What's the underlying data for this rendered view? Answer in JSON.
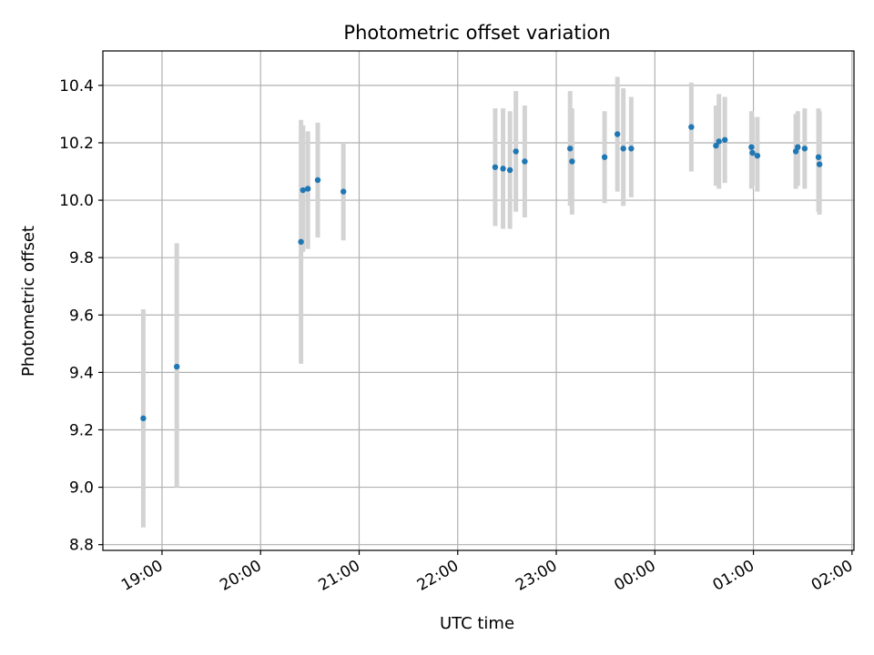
{
  "chart_data": {
    "type": "scatter",
    "title": "Photometric offset variation",
    "xlabel": "UTC time",
    "ylabel": "Photometric offset",
    "grid": true,
    "xlim_hours": [
      18.4,
      26.02
    ],
    "ylim": [
      8.78,
      10.52
    ],
    "xticks": [
      {
        "h": 19,
        "label": "19:00"
      },
      {
        "h": 20,
        "label": "20:00"
      },
      {
        "h": 21,
        "label": "21:00"
      },
      {
        "h": 22,
        "label": "22:00"
      },
      {
        "h": 23,
        "label": "23:00"
      },
      {
        "h": 24,
        "label": "00:00"
      },
      {
        "h": 25,
        "label": "01:00"
      },
      {
        "h": 26,
        "label": "02:00"
      }
    ],
    "yticks": [
      {
        "v": 8.8,
        "label": "8.8"
      },
      {
        "v": 9.0,
        "label": "9.0"
      },
      {
        "v": 9.2,
        "label": "9.2"
      },
      {
        "v": 9.4,
        "label": "9.4"
      },
      {
        "v": 9.6,
        "label": "9.6"
      },
      {
        "v": 9.8,
        "label": "9.8"
      },
      {
        "v": 10.0,
        "label": "10.0"
      },
      {
        "v": 10.2,
        "label": "10.2"
      },
      {
        "v": 10.4,
        "label": "10.4"
      }
    ],
    "colors": {
      "marker": "#1f77b4",
      "errorbar": "#d3d3d3",
      "grid": "#b0b0b0",
      "axis": "#000000"
    },
    "points": [
      {
        "t": 18.81,
        "y": 9.24,
        "lo": 8.86,
        "hi": 9.62
      },
      {
        "t": 19.15,
        "y": 9.42,
        "lo": 9.0,
        "hi": 9.85
      },
      {
        "t": 20.41,
        "y": 9.855,
        "lo": 9.43,
        "hi": 10.28
      },
      {
        "t": 20.43,
        "y": 10.035,
        "lo": 9.82,
        "hi": 10.26
      },
      {
        "t": 20.48,
        "y": 10.04,
        "lo": 9.83,
        "hi": 10.24
      },
      {
        "t": 20.58,
        "y": 10.07,
        "lo": 9.87,
        "hi": 10.27
      },
      {
        "t": 20.84,
        "y": 10.03,
        "lo": 9.86,
        "hi": 10.2
      },
      {
        "t": 22.38,
        "y": 10.115,
        "lo": 9.91,
        "hi": 10.32
      },
      {
        "t": 22.46,
        "y": 10.11,
        "lo": 9.9,
        "hi": 10.32
      },
      {
        "t": 22.53,
        "y": 10.105,
        "lo": 9.9,
        "hi": 10.31
      },
      {
        "t": 22.59,
        "y": 10.17,
        "lo": 9.96,
        "hi": 10.38
      },
      {
        "t": 22.68,
        "y": 10.135,
        "lo": 9.94,
        "hi": 10.33
      },
      {
        "t": 23.14,
        "y": 10.18,
        "lo": 9.98,
        "hi": 10.38
      },
      {
        "t": 23.16,
        "y": 10.135,
        "lo": 9.95,
        "hi": 10.32
      },
      {
        "t": 23.49,
        "y": 10.15,
        "lo": 9.99,
        "hi": 10.31
      },
      {
        "t": 23.62,
        "y": 10.23,
        "lo": 10.03,
        "hi": 10.43
      },
      {
        "t": 23.68,
        "y": 10.18,
        "lo": 9.98,
        "hi": 10.39
      },
      {
        "t": 23.76,
        "y": 10.18,
        "lo": 10.01,
        "hi": 10.36
      },
      {
        "t": 24.37,
        "y": 10.255,
        "lo": 10.1,
        "hi": 10.41
      },
      {
        "t": 24.62,
        "y": 10.19,
        "lo": 10.05,
        "hi": 10.33
      },
      {
        "t": 24.65,
        "y": 10.205,
        "lo": 10.04,
        "hi": 10.37
      },
      {
        "t": 24.71,
        "y": 10.21,
        "lo": 10.06,
        "hi": 10.36
      },
      {
        "t": 24.98,
        "y": 10.185,
        "lo": 10.04,
        "hi": 10.31
      },
      {
        "t": 24.99,
        "y": 10.165,
        "lo": 10.05,
        "hi": 10.29
      },
      {
        "t": 25.04,
        "y": 10.155,
        "lo": 10.03,
        "hi": 10.29
      },
      {
        "t": 25.43,
        "y": 10.17,
        "lo": 10.04,
        "hi": 10.3
      },
      {
        "t": 25.45,
        "y": 10.185,
        "lo": 10.05,
        "hi": 10.31
      },
      {
        "t": 25.52,
        "y": 10.18,
        "lo": 10.04,
        "hi": 10.32
      },
      {
        "t": 25.66,
        "y": 10.15,
        "lo": 9.96,
        "hi": 10.32
      },
      {
        "t": 25.67,
        "y": 10.125,
        "lo": 9.95,
        "hi": 10.31
      }
    ]
  }
}
